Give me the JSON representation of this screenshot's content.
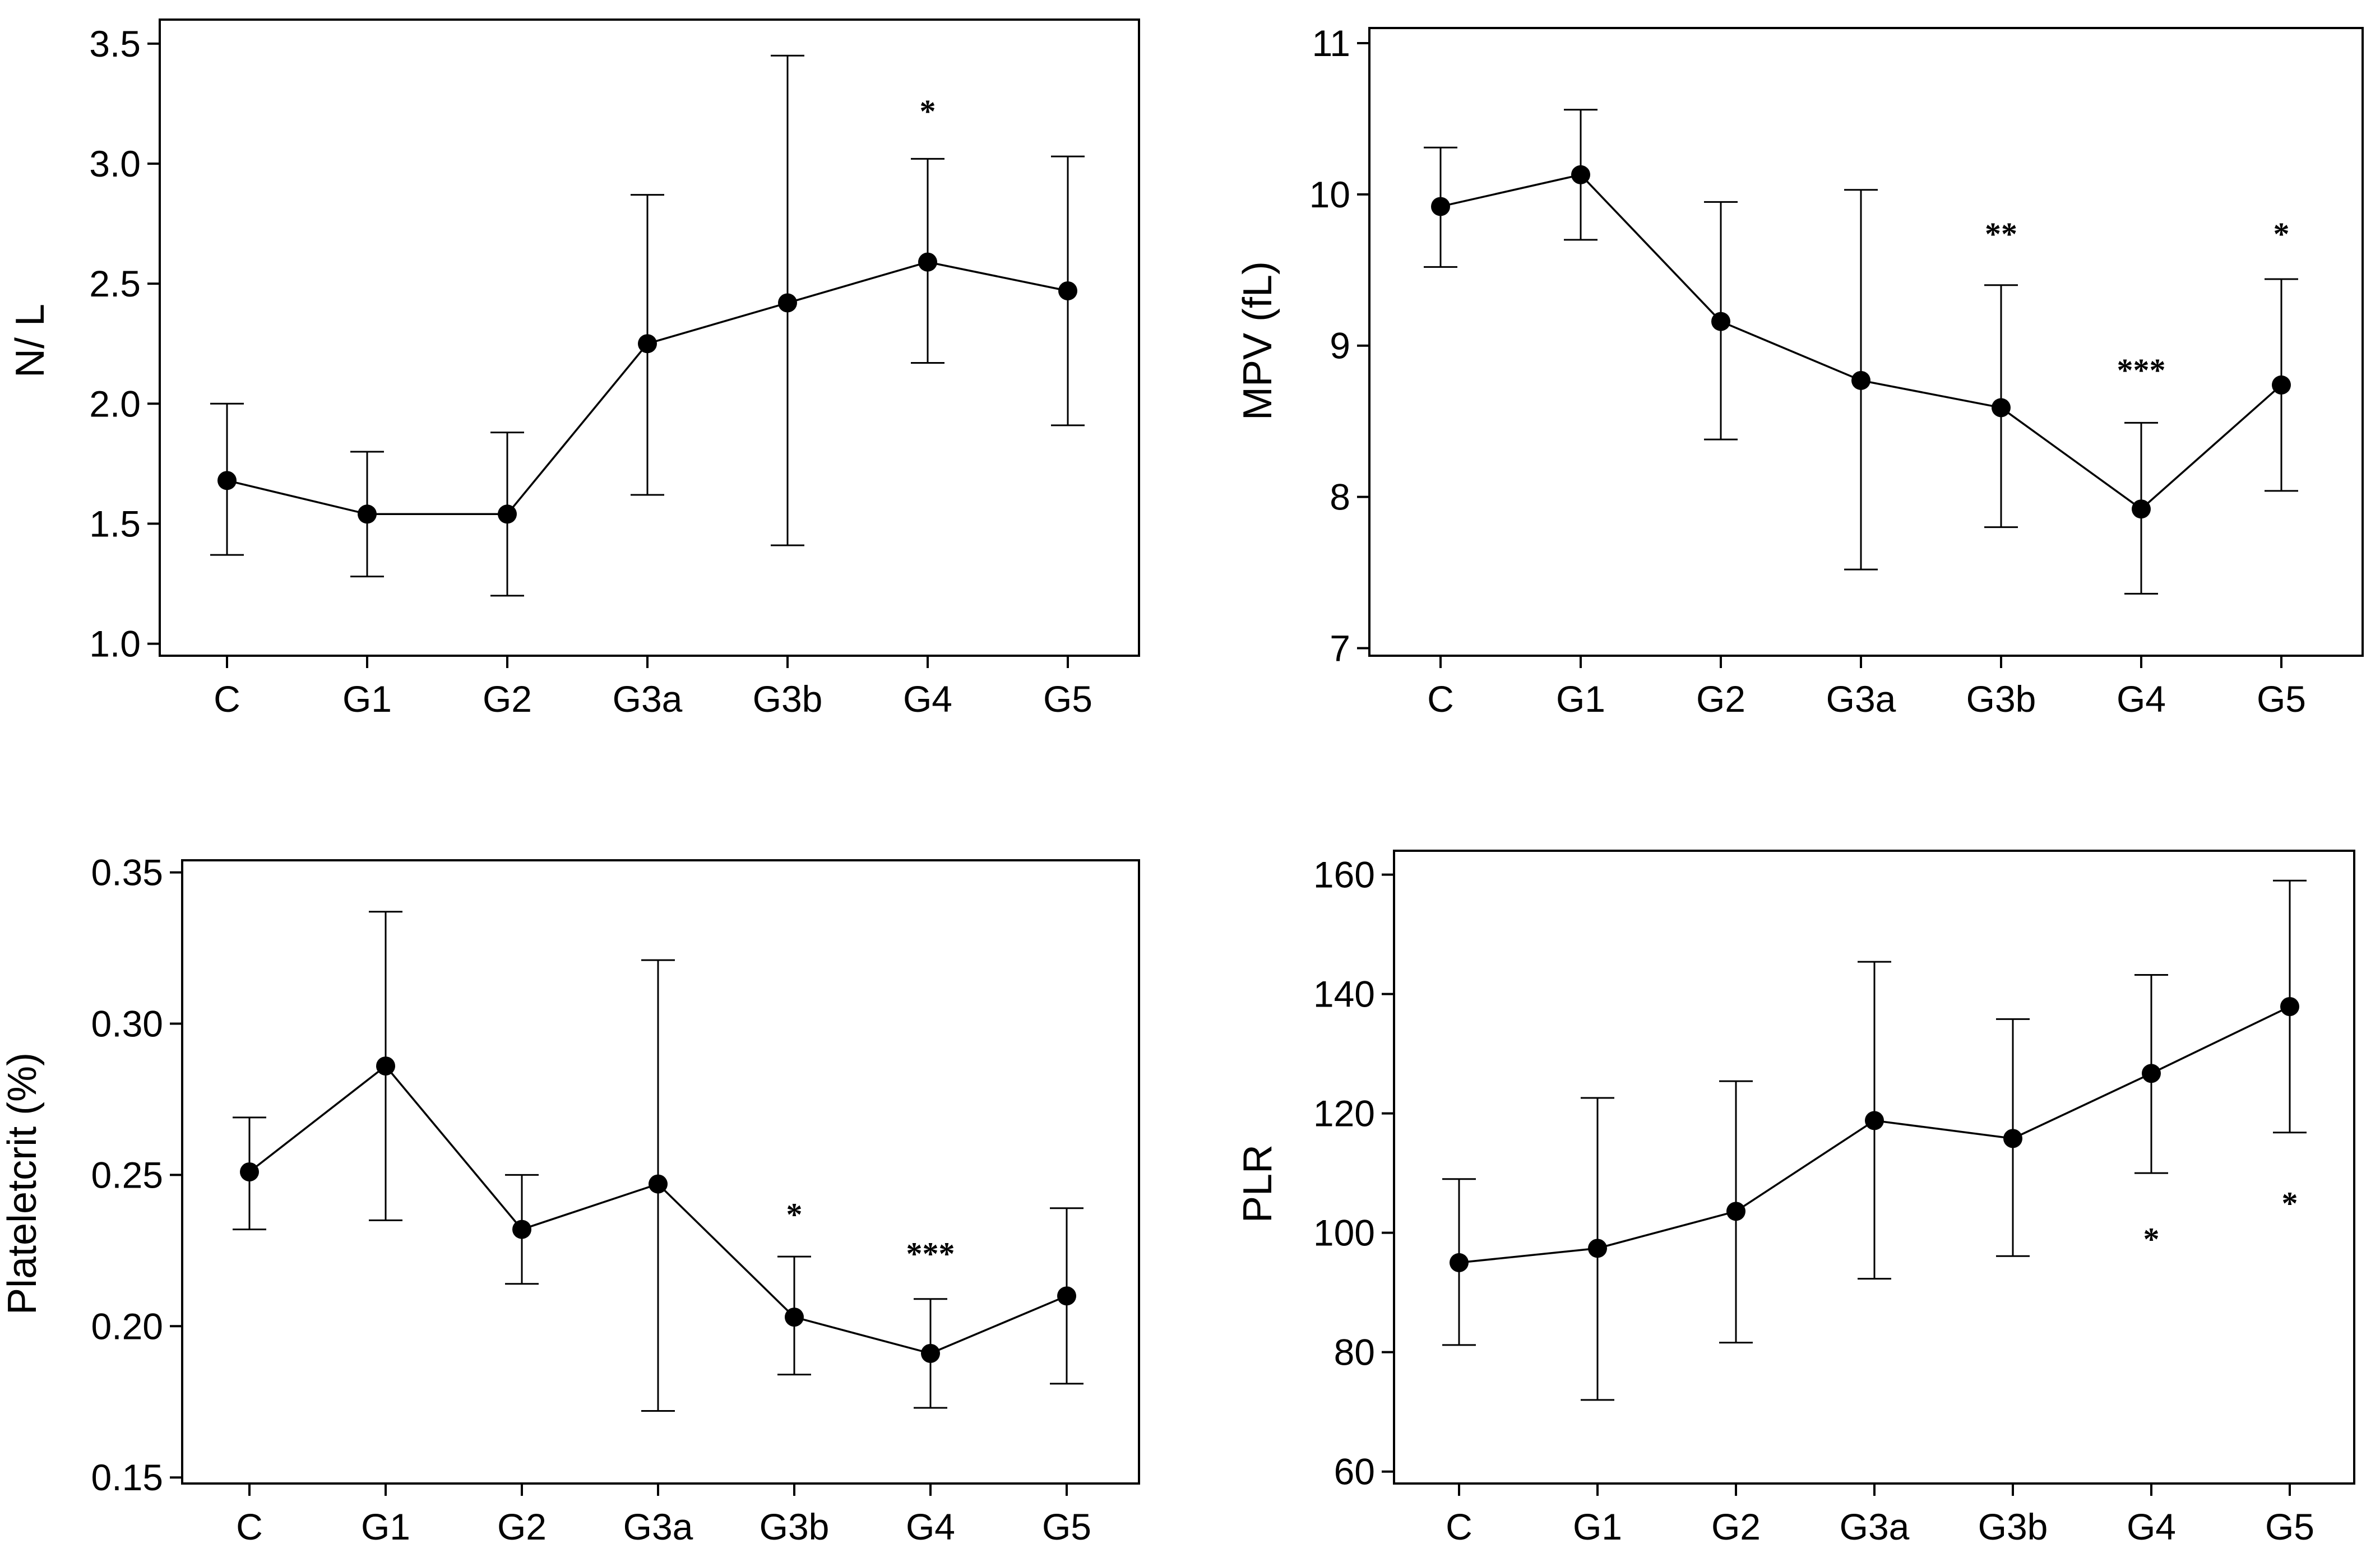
{
  "figure": {
    "panel_count": 4
  },
  "chart_data": [
    {
      "type": "line",
      "panel": "top-left",
      "title": "",
      "xlabel": "",
      "ylabel": "N/ L",
      "categories": [
        "C",
        "G1",
        "G2",
        "G3a",
        "G3b",
        "G4",
        "G5"
      ],
      "ylim": [
        0.95,
        3.6
      ],
      "yticks": [
        1.0,
        1.5,
        2.0,
        2.5,
        3.0,
        3.5
      ],
      "ytick_labels": [
        "1.0",
        "1.5",
        "2.0",
        "2.5",
        "3.0",
        "3.5"
      ],
      "error_bars": "mean with upper/lower bounds",
      "series": [
        {
          "name": "N/ L",
          "values": [
            1.68,
            1.54,
            1.54,
            2.25,
            2.42,
            2.59,
            2.47
          ],
          "lower": [
            1.37,
            1.28,
            1.2,
            1.62,
            1.41,
            2.17,
            1.91
          ],
          "upper": [
            2.0,
            1.8,
            1.88,
            2.87,
            3.45,
            3.02,
            3.03
          ]
        }
      ],
      "annotations": [
        {
          "category": "G4",
          "text": "*",
          "value": 3.22
        }
      ]
    },
    {
      "type": "line",
      "panel": "top-right",
      "title": "",
      "xlabel": "",
      "ylabel": "MPV (fL)",
      "categories": [
        "C",
        "G1",
        "G2",
        "G3a",
        "G3b",
        "G4",
        "G5"
      ],
      "ylim": [
        6.95,
        11.1
      ],
      "yticks": [
        7,
        8,
        9,
        10,
        11
      ],
      "ytick_labels": [
        "7",
        "8",
        "9",
        "10",
        "11"
      ],
      "error_bars": "mean with upper/lower bounds",
      "series": [
        {
          "name": "MPV (fL)",
          "values": [
            9.92,
            10.13,
            9.16,
            8.77,
            8.59,
            7.92,
            8.74
          ],
          "lower": [
            9.52,
            9.7,
            8.38,
            7.52,
            7.8,
            7.36,
            8.04
          ],
          "upper": [
            10.31,
            10.56,
            9.95,
            10.03,
            9.4,
            8.49,
            9.44
          ]
        }
      ],
      "annotations": [
        {
          "category": "G3b",
          "text": "**",
          "value": 9.74
        },
        {
          "category": "G4",
          "text": "***",
          "value": 8.84
        },
        {
          "category": "G5",
          "text": "*",
          "value": 9.74
        }
      ]
    },
    {
      "type": "line",
      "panel": "bottom-left",
      "title": "",
      "xlabel": "",
      "ylabel": "Plateletcrit (%)",
      "categories": [
        "C",
        "G1",
        "G2",
        "G3a",
        "G3b",
        "G4",
        "G5"
      ],
      "ylim": [
        0.148,
        0.354
      ],
      "yticks": [
        0.15,
        0.2,
        0.25,
        0.3,
        0.35
      ],
      "ytick_labels": [
        "0.15",
        "0.20",
        "0.25",
        "0.30",
        "0.35"
      ],
      "error_bars": "mean with upper/lower bounds",
      "series": [
        {
          "name": "Plateletcrit (%)",
          "values": [
            0.251,
            0.286,
            0.232,
            0.247,
            0.203,
            0.191,
            0.21
          ],
          "lower": [
            0.232,
            0.235,
            0.214,
            0.172,
            0.184,
            0.173,
            0.181
          ],
          "upper": [
            0.269,
            0.337,
            0.25,
            0.321,
            0.223,
            0.209,
            0.239
          ]
        }
      ],
      "annotations": [
        {
          "category": "G3b",
          "text": "*",
          "value": 0.237
        },
        {
          "category": "G4",
          "text": "***",
          "value": 0.224
        }
      ]
    },
    {
      "type": "line",
      "panel": "bottom-right",
      "title": "",
      "xlabel": "",
      "ylabel": "PLR",
      "categories": [
        "C",
        "G1",
        "G2",
        "G3a",
        "G3b",
        "G4",
        "G5"
      ],
      "ylim": [
        58,
        164
      ],
      "yticks": [
        60,
        80,
        100,
        120,
        140,
        160
      ],
      "ytick_labels": [
        "60",
        "80",
        "100",
        "120",
        "140",
        "160"
      ],
      "error_bars": "mean with upper/lower bounds",
      "series": [
        {
          "name": "PLR",
          "values": [
            95.0,
            97.4,
            103.6,
            118.8,
            115.8,
            126.7,
            137.9
          ],
          "lower": [
            81.2,
            72.0,
            81.6,
            92.3,
            96.1,
            110.0,
            116.8
          ],
          "upper": [
            109.0,
            122.6,
            125.4,
            145.4,
            135.8,
            143.2,
            159.0
          ]
        }
      ],
      "annotations": [
        {
          "category": "G4",
          "text": "*",
          "value": 99
        },
        {
          "category": "G5",
          "text": "*",
          "value": 105
        }
      ]
    }
  ]
}
